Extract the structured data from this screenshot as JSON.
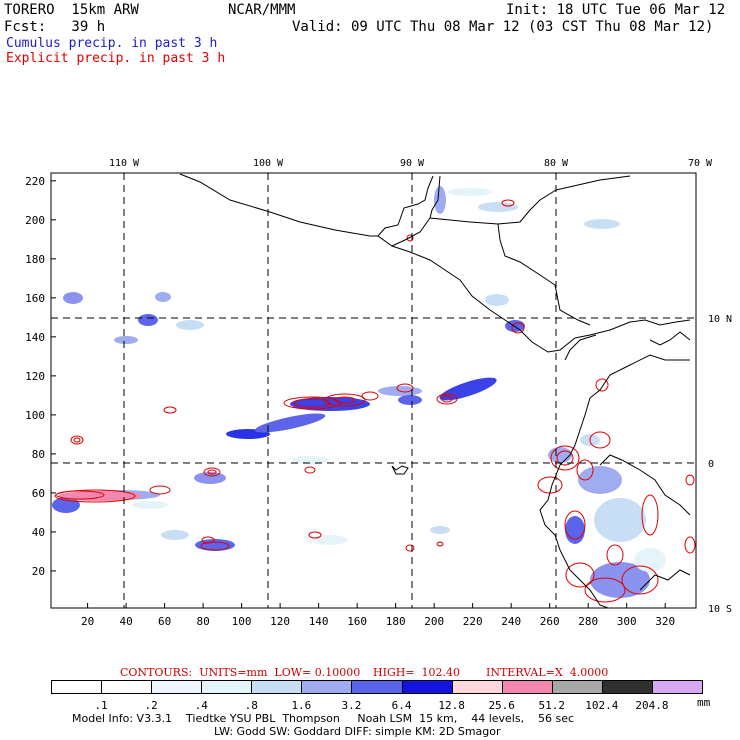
{
  "header": {
    "model": "TORERO  15km ARW",
    "org": "NCAR/MMM",
    "init": "Init: 18 UTC Tue 06 Mar 12",
    "fcst": "Fcst:   39 h",
    "valid": "Valid: 09 UTC Thu 08 Mar 12 (03 CST Thu 08 Mar 12)",
    "legend_cumulus": "Cumulus precip. in past 3 h",
    "legend_explicit": "Explicit precip. in past 3 h",
    "color_cumulus": "#2020c0",
    "color_explicit": "#e00000"
  },
  "map": {
    "lon_labels": [
      "110 W",
      "100 W",
      "90 W",
      "80 W",
      "70 W"
    ],
    "lat_labels": [
      "10 N",
      "0",
      "10 S"
    ],
    "grid_x_ticks": [
      "20",
      "40",
      "60",
      "80",
      "100",
      "120",
      "140",
      "160",
      "180",
      "200",
      "220",
      "240",
      "260",
      "280",
      "300",
      "320"
    ],
    "grid_y_ticks": [
      "20",
      "40",
      "60",
      "80",
      "100",
      "120",
      "140",
      "160",
      "180",
      "200",
      "220"
    ],
    "x_range": [
      1,
      336
    ],
    "y_range": [
      1,
      224
    ]
  },
  "contours_line": {
    "label": "CONTOURS:  UNITS=mm  LOW= 0.10000",
    "high": "HIGH=  102.40",
    "interval": "INTERVAL=X  4.0000"
  },
  "colorbar": {
    "unit": "mm",
    "labels": [
      ".1",
      ".2",
      ".4",
      ".8",
      "1.6",
      "3.2",
      "6.4",
      "12.8",
      "25.6",
      "51.2",
      "102.4",
      "204.8"
    ],
    "colors": [
      "#ffffff",
      "#ffffff",
      "#f0f6ff",
      "#e4f4f8",
      "#c8def4",
      "#a0acf0",
      "#5c64ec",
      "#1414e0",
      "#fcd8dc",
      "#f488b0",
      "#a8a8a8",
      "#303030",
      "#d8a8f4"
    ]
  },
  "footer": {
    "line1": "Model Info: V3.3.1    Tiedtke YSU PBL  Thompson     Noah LSM  15 km,    44 levels,    56 sec",
    "line2": "LW: Godd SW: Goddard DIFF: simple KM: 2D Smagor"
  }
}
